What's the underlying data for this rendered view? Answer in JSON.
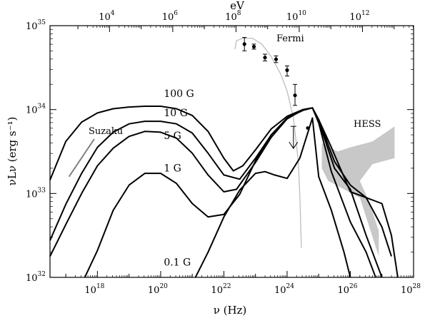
{
  "chart_data": {
    "type": "line",
    "xlabel": "ν (Hz)",
    "ylabel": "νLν (erg s⁻¹)",
    "top_axis_label": "eV",
    "x_scale": "log",
    "y_scale": "log",
    "xlim_log10_hz": [
      16.5,
      28
    ],
    "ylim_log10": [
      32,
      35
    ],
    "x_major_tick_labels": [
      {
        "exp": 18,
        "label": "10",
        "sup": "18"
      },
      {
        "exp": 20,
        "label": "10",
        "sup": "20"
      },
      {
        "exp": 22,
        "label": "10",
        "sup": "22"
      },
      {
        "exp": 24,
        "label": "10",
        "sup": "24"
      },
      {
        "exp": 26,
        "label": "10",
        "sup": "26"
      },
      {
        "exp": 28,
        "label": "10",
        "sup": "28"
      }
    ],
    "y_major_tick_labels": [
      {
        "exp": 32,
        "label": "10",
        "sup": "32"
      },
      {
        "exp": 33,
        "label": "10",
        "sup": "33"
      },
      {
        "exp": 34,
        "label": "10",
        "sup": "34"
      },
      {
        "exp": 35,
        "label": "10",
        "sup": "35"
      }
    ],
    "top_major_tick_labels": [
      {
        "exp_ev": 4,
        "label": "10",
        "sup": "4"
      },
      {
        "exp_ev": 6,
        "label": "10",
        "sup": "6"
      },
      {
        "exp_ev": 8,
        "label": "10",
        "sup": "8"
      },
      {
        "exp_ev": 10,
        "label": "10",
        "sup": "10"
      },
      {
        "exp_ev": 12,
        "label": "10",
        "sup": "12"
      }
    ],
    "series": [
      {
        "name": "100 G",
        "points": [
          [
            16.5,
            33.16
          ],
          [
            17,
            33.62
          ],
          [
            17.5,
            33.85
          ],
          [
            18,
            33.96
          ],
          [
            18.5,
            34.01
          ],
          [
            19,
            34.03
          ],
          [
            19.5,
            34.04
          ],
          [
            20,
            34.04
          ],
          [
            20.5,
            34.01
          ],
          [
            21,
            33.93
          ],
          [
            21.5,
            33.74
          ],
          [
            22,
            33.42
          ],
          [
            22.3,
            33.27
          ],
          [
            22.6,
            33.33
          ],
          [
            23,
            33.52
          ],
          [
            23.5,
            33.77
          ],
          [
            24,
            33.92
          ],
          [
            24.5,
            34.0
          ],
          [
            24.8,
            34.02
          ],
          [
            25,
            33.84
          ],
          [
            25.4,
            33.26
          ],
          [
            26,
            32.66
          ],
          [
            26.5,
            32.3
          ],
          [
            26.8,
            32.0
          ]
        ]
      },
      {
        "name": "10 G",
        "points": [
          [
            16.5,
            32.44
          ],
          [
            17,
            32.87
          ],
          [
            17.5,
            33.24
          ],
          [
            18,
            33.55
          ],
          [
            18.5,
            33.73
          ],
          [
            19,
            33.83
          ],
          [
            19.5,
            33.86
          ],
          [
            20,
            33.86
          ],
          [
            20.5,
            33.83
          ],
          [
            21,
            33.72
          ],
          [
            21.5,
            33.48
          ],
          [
            22,
            33.22
          ],
          [
            22.5,
            33.17
          ],
          [
            23,
            33.42
          ],
          [
            23.5,
            33.7
          ],
          [
            24,
            33.89
          ],
          [
            24.5,
            34.0
          ],
          [
            24.8,
            34.02
          ],
          [
            25,
            33.86
          ],
          [
            25.5,
            33.3
          ],
          [
            26,
            33.05
          ],
          [
            26.5,
            32.5
          ],
          [
            27,
            32.0
          ]
        ]
      },
      {
        "name": "5 G",
        "points": [
          [
            16.5,
            32.25
          ],
          [
            17,
            32.63
          ],
          [
            17.5,
            33.0
          ],
          [
            18,
            33.33
          ],
          [
            18.5,
            33.54
          ],
          [
            19,
            33.68
          ],
          [
            19.5,
            33.74
          ],
          [
            20,
            33.73
          ],
          [
            20.5,
            33.66
          ],
          [
            21,
            33.48
          ],
          [
            21.5,
            33.22
          ],
          [
            22,
            33.02
          ],
          [
            22.4,
            33.05
          ],
          [
            23,
            33.37
          ],
          [
            23.5,
            33.67
          ],
          [
            24,
            33.89
          ],
          [
            24.5,
            34.0
          ],
          [
            24.8,
            34.02
          ],
          [
            25,
            33.88
          ],
          [
            25.5,
            33.38
          ],
          [
            26,
            33.1
          ],
          [
            26.5,
            32.95
          ],
          [
            27,
            32.6
          ],
          [
            27.3,
            32.25
          ]
        ]
      },
      {
        "name": "1 G",
        "points": [
          [
            17.6,
            32.0
          ],
          [
            18,
            32.32
          ],
          [
            18.5,
            32.8
          ],
          [
            19,
            33.1
          ],
          [
            19.5,
            33.24
          ],
          [
            20,
            33.24
          ],
          [
            20.5,
            33.12
          ],
          [
            21,
            32.88
          ],
          [
            21.5,
            32.72
          ],
          [
            22,
            32.75
          ],
          [
            22.5,
            32.99
          ],
          [
            23,
            33.39
          ],
          [
            23.5,
            33.7
          ],
          [
            24,
            33.9
          ],
          [
            24.5,
            33.99
          ],
          [
            24.8,
            34.02
          ],
          [
            25,
            33.88
          ],
          [
            25.4,
            33.55
          ],
          [
            26,
            33.02
          ],
          [
            26.5,
            32.95
          ],
          [
            27,
            32.88
          ],
          [
            27.3,
            32.5
          ],
          [
            27.5,
            32.0
          ]
        ]
      },
      {
        "name": "0.1 G",
        "points": [
          [
            21.1,
            32.0
          ],
          [
            21.5,
            32.3
          ],
          [
            22,
            32.72
          ],
          [
            22.5,
            33.04
          ],
          [
            23,
            33.24
          ],
          [
            23.3,
            33.26
          ],
          [
            23.6,
            33.22
          ],
          [
            24,
            33.18
          ],
          [
            24.4,
            33.42
          ],
          [
            24.8,
            33.9
          ],
          [
            25,
            33.2
          ],
          [
            25.4,
            32.8
          ],
          [
            25.8,
            32.3
          ],
          [
            26.0,
            32.0
          ]
        ]
      }
    ],
    "curve_labels": [
      {
        "text": "100 G",
        "at": [
          20.1,
          34.15
        ]
      },
      {
        "text": "10 G",
        "at": [
          20.1,
          33.92
        ]
      },
      {
        "text": "5 G",
        "at": [
          20.1,
          33.65
        ]
      },
      {
        "text": "1 G",
        "at": [
          20.1,
          33.26
        ]
      },
      {
        "text": "0.1 G",
        "at": [
          20.1,
          32.14
        ]
      }
    ],
    "fermi": {
      "label": "Fermi",
      "model_curve": [
        [
          22.35,
          34.72
        ],
        [
          22.4,
          34.82
        ],
        [
          22.6,
          34.85
        ],
        [
          22.9,
          34.85
        ],
        [
          23.2,
          34.78
        ],
        [
          23.5,
          34.63
        ],
        [
          23.8,
          34.42
        ],
        [
          24.0,
          34.22
        ],
        [
          24.2,
          33.9
        ],
        [
          24.35,
          33.4
        ],
        [
          24.4,
          33.0
        ],
        [
          24.45,
          32.35
        ]
      ],
      "points": [
        {
          "x": 22.65,
          "y": 34.78,
          "ylo": 34.7,
          "yhi": 34.86
        },
        {
          "x": 22.95,
          "y": 34.75,
          "ylo": 34.72,
          "yhi": 34.78
        },
        {
          "x": 23.3,
          "y": 34.62,
          "ylo": 34.58,
          "yhi": 34.66
        },
        {
          "x": 23.65,
          "y": 34.6,
          "ylo": 34.56,
          "yhi": 34.64
        },
        {
          "x": 24.0,
          "y": 34.47,
          "ylo": 34.4,
          "yhi": 34.52
        },
        {
          "x": 24.25,
          "y": 34.17,
          "ylo": 34.05,
          "yhi": 34.3
        }
      ],
      "upper_limit": {
        "x": 24.2,
        "y": 33.8
      }
    },
    "point_above_limit": {
      "x": 24.65,
      "y": 33.78
    },
    "suzaku": {
      "label": "Suzaku",
      "segment": [
        [
          17.1,
          33.2
        ],
        [
          17.9,
          33.65
        ]
      ]
    },
    "hess": {
      "label": "HESS",
      "polygon": [
        [
          25.1,
          33.6
        ],
        [
          25.6,
          33.5
        ],
        [
          26.0,
          33.55
        ],
        [
          26.7,
          33.62
        ],
        [
          27.4,
          33.8
        ],
        [
          27.4,
          33.42
        ],
        [
          26.7,
          33.35
        ],
        [
          26.3,
          33.15
        ],
        [
          26.6,
          32.9
        ],
        [
          26.9,
          32.55
        ],
        [
          26.9,
          32.25
        ],
        [
          26.3,
          32.95
        ],
        [
          25.8,
          33.05
        ],
        [
          25.3,
          33.15
        ],
        [
          25.1,
          33.3
        ]
      ]
    },
    "colors": {
      "curves": "#000000",
      "fermi_model": "#bdbdbd",
      "hess_fill": "#c8c8c8",
      "suzaku": "#808080"
    },
    "grid": false,
    "legend": "none"
  }
}
